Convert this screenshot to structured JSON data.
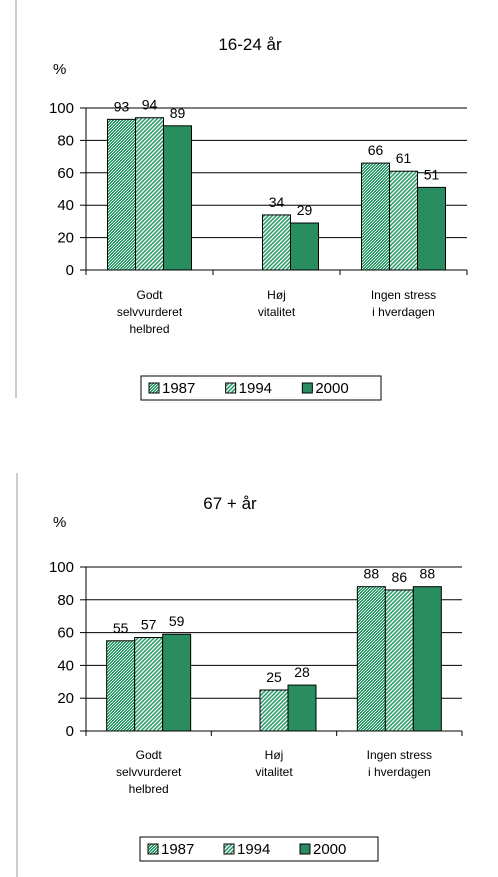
{
  "colors": {
    "s1987": "#8fcfae",
    "s1994": "#2f9e6c",
    "s2000": "#2a8d5f",
    "frame": "#000000",
    "grid": "#000000"
  },
  "legend": [
    "1987",
    "1994",
    "2000"
  ],
  "chart_data": [
    {
      "type": "bar",
      "title": "16-24 år",
      "ylabel": "%",
      "ylim": [
        0,
        100
      ],
      "yticks": [
        "0",
        "20",
        "40",
        "60",
        "80",
        "100"
      ],
      "categories": [
        "Godt selvvurderet helbred",
        "Høj vitalitet",
        "Ingen stress i hverdagen"
      ],
      "category_lines": [
        [
          "Godt",
          "selvvurderet",
          "helbred"
        ],
        [
          "Høj",
          "vitalitet"
        ],
        [
          "Ingen stress",
          "i hverdagen"
        ]
      ],
      "series": [
        {
          "name": "1987",
          "values": [
            93,
            null,
            66
          ]
        },
        {
          "name": "1994",
          "values": [
            94,
            34,
            61
          ]
        },
        {
          "name": "2000",
          "values": [
            89,
            29,
            51
          ]
        }
      ],
      "grid": true,
      "legend_position": "bottom"
    },
    {
      "type": "bar",
      "title": "67 + år",
      "ylabel": "%",
      "ylim": [
        0,
        100
      ],
      "yticks": [
        "0",
        "20",
        "40",
        "60",
        "80",
        "100"
      ],
      "categories": [
        "Godt selvvurderet helbred",
        "Høj vitalitet",
        "Ingen stress i hverdagen"
      ],
      "category_lines": [
        [
          "Godt",
          "selvvurderet",
          "helbred"
        ],
        [
          "Høj",
          "vitalitet"
        ],
        [
          "Ingen stress",
          "i hverdagen"
        ]
      ],
      "series": [
        {
          "name": "1987",
          "values": [
            55,
            null,
            88
          ]
        },
        {
          "name": "1994",
          "values": [
            57,
            25,
            86
          ]
        },
        {
          "name": "2000",
          "values": [
            59,
            28,
            88
          ]
        }
      ],
      "grid": true,
      "legend_position": "bottom"
    }
  ]
}
